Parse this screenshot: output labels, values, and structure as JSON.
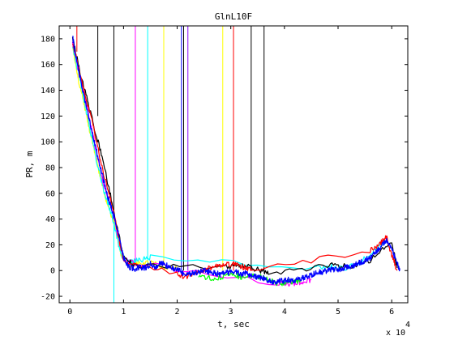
{
  "chart_data": {
    "type": "line",
    "title": "GlnL10F",
    "xlabel": "t, sec",
    "ylabel": "PR, m",
    "x_exponent_base": "x 10",
    "x_exponent_power": "4",
    "xlim": [
      -0.2,
      6.3
    ],
    "ylim": [
      -25,
      190
    ],
    "x_ticks": [
      0,
      1,
      2,
      3,
      4,
      5,
      6
    ],
    "y_ticks": [
      -20,
      0,
      20,
      40,
      60,
      80,
      100,
      120,
      140,
      160,
      180
    ],
    "grid": false,
    "legend": "none",
    "vertical_lines": [
      {
        "x": 0.13,
        "color": "#ff0000",
        "y0": 190,
        "y1": 170
      },
      {
        "x": 0.52,
        "color": "#000000",
        "y0": 190,
        "y1": 120
      },
      {
        "x": 0.82,
        "color": "#000000",
        "y0": 190,
        "y1": 40
      },
      {
        "x": 0.82,
        "color": "#00ffff",
        "y0": 40,
        "y1": -25
      },
      {
        "x": 1.22,
        "color": "#ff00ff",
        "y0": 190,
        "y1": 5
      },
      {
        "x": 1.45,
        "color": "#00ffff",
        "y0": 190,
        "y1": 5
      },
      {
        "x": 1.75,
        "color": "#ffff00",
        "y0": 190,
        "y1": 5
      },
      {
        "x": 2.08,
        "color": "#0000ff",
        "y0": 190,
        "y1": 0
      },
      {
        "x": 2.12,
        "color": "#000000",
        "y0": 190,
        "y1": 0
      },
      {
        "x": 2.2,
        "color": "#8800ff",
        "y0": 190,
        "y1": 0
      },
      {
        "x": 2.85,
        "color": "#ffff00",
        "y0": 190,
        "y1": 0
      },
      {
        "x": 3.05,
        "color": "#ff0000",
        "y0": 190,
        "y1": 0
      },
      {
        "x": 3.38,
        "color": "#000000",
        "y0": 190,
        "y1": 0
      },
      {
        "x": 3.62,
        "color": "#000000",
        "y0": 190,
        "y1": 0
      }
    ],
    "series": [
      {
        "color": "#ffff00",
        "x": [
          0.05,
          0.15,
          0.25,
          0.35,
          0.45,
          0.55,
          0.65,
          0.75,
          0.85,
          0.95,
          1.1,
          1.25,
          1.5,
          1.75,
          2.0
        ],
        "values": [
          172,
          150,
          132,
          112,
          94,
          76,
          58,
          46,
          34,
          12,
          4,
          5,
          6,
          3,
          2
        ]
      },
      {
        "color": "#00ffff",
        "x": [
          0.05,
          0.2,
          0.35,
          0.5,
          0.65,
          0.8,
          0.95,
          1.1,
          1.3,
          1.5,
          4.6,
          4.9,
          5.2,
          5.6,
          5.9
        ],
        "values": [
          175,
          145,
          115,
          85,
          60,
          40,
          12,
          6,
          8,
          10,
          2,
          3,
          2,
          12,
          24
        ]
      },
      {
        "color": "#ff00ff",
        "x": [
          0.05,
          0.2,
          0.4,
          0.6,
          0.8,
          1.0,
          1.2,
          3.9,
          4.1,
          4.3,
          4.5
        ],
        "values": [
          176,
          148,
          110,
          72,
          45,
          8,
          6,
          -10,
          -11,
          -9,
          -7
        ]
      },
      {
        "color": "#00ff00",
        "x": [
          2.4,
          2.7,
          3.0,
          3.2,
          3.5,
          3.7,
          3.9,
          4.1,
          4.3
        ],
        "values": [
          -4,
          -6,
          -3,
          -5,
          -4,
          -7,
          -10,
          -9,
          -8
        ]
      },
      {
        "color": "#000000",
        "x": [
          0.05,
          0.2,
          0.4,
          0.6,
          0.8,
          1.0,
          1.2,
          2.9,
          3.1,
          3.3,
          3.5,
          3.7,
          4.8,
          5.2,
          5.6,
          6.0,
          6.1
        ],
        "values": [
          180,
          152,
          120,
          88,
          50,
          10,
          4,
          2,
          4,
          3,
          1,
          -2,
          4,
          3,
          8,
          22,
          2
        ]
      },
      {
        "color": "#ff0000",
        "x": [
          0.05,
          0.2,
          0.4,
          0.6,
          0.8,
          1.0,
          2.0,
          2.2,
          2.4,
          2.6,
          2.8,
          3.0,
          3.2,
          3.4,
          5.6,
          5.8,
          5.9,
          6.0,
          6.1
        ],
        "values": [
          178,
          150,
          118,
          80,
          48,
          8,
          -3,
          -5,
          -1,
          2,
          4,
          5,
          3,
          1,
          15,
          22,
          26,
          12,
          0
        ]
      },
      {
        "color": "#0000ff",
        "x": [
          0.05,
          0.1,
          0.2,
          0.3,
          0.4,
          0.5,
          0.6,
          0.7,
          0.8,
          0.9,
          1.0,
          1.1,
          1.2,
          1.3,
          1.4,
          1.5,
          1.6,
          1.7,
          1.8,
          1.9,
          2.0,
          2.1,
          2.2,
          2.3,
          2.4,
          2.5,
          2.6,
          2.7,
          2.8,
          2.9,
          3.0,
          3.1,
          3.2,
          3.3,
          3.4,
          3.5,
          3.6,
          3.7,
          3.8,
          3.9,
          4.0,
          4.1,
          4.2,
          4.3,
          4.4,
          4.5,
          4.6,
          4.7,
          4.8,
          4.9,
          5.0,
          5.1,
          5.2,
          5.3,
          5.4,
          5.5,
          5.6,
          5.7,
          5.8,
          5.9,
          6.0,
          6.1,
          6.15
        ],
        "values": [
          182,
          168,
          148,
          128,
          110,
          92,
          75,
          58,
          45,
          30,
          10,
          3,
          1,
          3,
          2,
          5,
          3,
          6,
          4,
          2,
          1,
          -2,
          -3,
          -2,
          -1,
          0,
          -1,
          -2,
          -3,
          -1,
          -2,
          -1,
          -3,
          -2,
          -4,
          -5,
          -6,
          -8,
          -9,
          -8,
          -8,
          -7,
          -8,
          -6,
          -5,
          -3,
          -2,
          -1,
          0,
          1,
          1,
          2,
          3,
          4,
          6,
          8,
          10,
          14,
          19,
          24,
          16,
          6,
          0
        ]
      }
    ]
  }
}
